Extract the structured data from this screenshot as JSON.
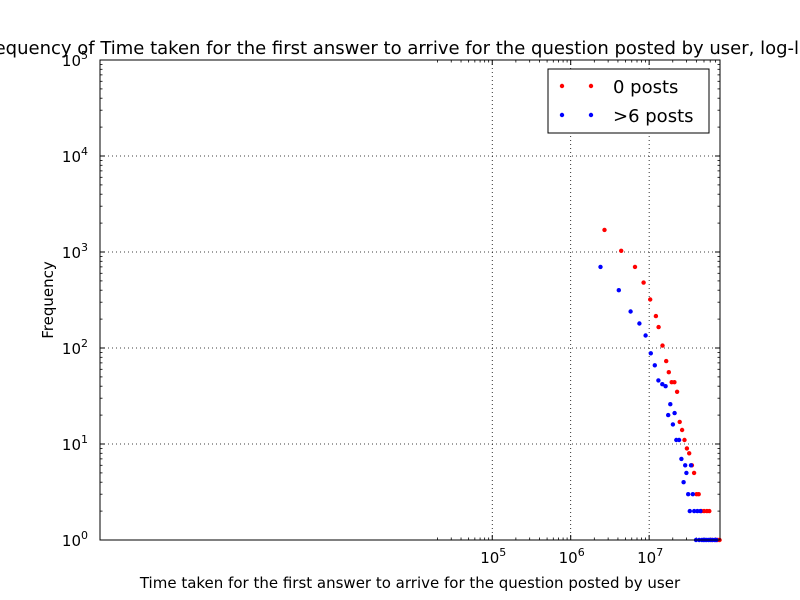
{
  "chart_data": {
    "type": "scatter",
    "title": "Frequency of Time taken for the first answer to arrive for the question posted by user, log-log",
    "xlabel": "Time taken for the first answer to arrive for the question posted by user",
    "ylabel": "Frequency",
    "x_scale": "log",
    "y_scale": "log",
    "xlim": [
      1,
      80000000
    ],
    "ylim": [
      1,
      100000
    ],
    "grid": true,
    "legend_position": "top-right",
    "x_ticks": [
      {
        "base": "10",
        "exp": "5",
        "value": 100000
      },
      {
        "base": "10",
        "exp": "6",
        "value": 1000000
      },
      {
        "base": "10",
        "exp": "7",
        "value": 10000000
      }
    ],
    "y_ticks": [
      {
        "base": "10",
        "exp": "0",
        "value": 1
      },
      {
        "base": "10",
        "exp": "1",
        "value": 10
      },
      {
        "base": "10",
        "exp": "2",
        "value": 100
      },
      {
        "base": "10",
        "exp": "3",
        "value": 1000
      },
      {
        "base": "10",
        "exp": "4",
        "value": 10000
      },
      {
        "base": "10",
        "exp": "5",
        "value": 100000
      }
    ],
    "series": [
      {
        "name": "0 posts",
        "color": "#ff0000",
        "x": [
          2700000,
          4400000,
          6600000,
          8500000,
          10300000,
          12200000,
          13200000,
          14800000,
          16500000,
          17800000,
          19400000,
          21000000,
          22700000,
          24500000,
          26300000,
          28200000,
          30300000,
          32400000,
          35100000,
          37400000,
          40200000,
          42800000,
          46300000,
          50200000,
          54500000,
          58400000,
          63000000,
          70500000,
          75000000,
          79000000
        ],
        "y": [
          1700,
          1030,
          700,
          480,
          320,
          215,
          165,
          106,
          73,
          56,
          44,
          44,
          35,
          17,
          14,
          11,
          9,
          8,
          6,
          5,
          3,
          3,
          2,
          2,
          2,
          2,
          1,
          1,
          1,
          1
        ]
      },
      {
        "name": ">6 posts",
        "color": "#0000ff",
        "x": [
          2400000,
          4100000,
          5800000,
          7500000,
          9000000,
          10500000,
          11800000,
          13100000,
          14700000,
          16200000,
          17500000,
          18600000,
          20100000,
          21100000,
          22200000,
          24100000,
          25800000,
          27500000,
          28800000,
          29800000,
          31500000,
          33000000,
          34200000,
          36000000,
          37500000,
          39500000,
          41200000,
          43500000,
          45000000,
          47000000,
          49500000,
          51500000,
          54000000,
          57000000,
          60000000,
          64000000,
          68000000,
          72000000
        ],
        "y": [
          700,
          400,
          240,
          180,
          135,
          88,
          66,
          46,
          42,
          40,
          20,
          26,
          16,
          21,
          11,
          11,
          7,
          4,
          6,
          5,
          3,
          2,
          6,
          3,
          2,
          1,
          2,
          1,
          2,
          1,
          1,
          1,
          1,
          1,
          1,
          1,
          1,
          1
        ]
      }
    ]
  }
}
